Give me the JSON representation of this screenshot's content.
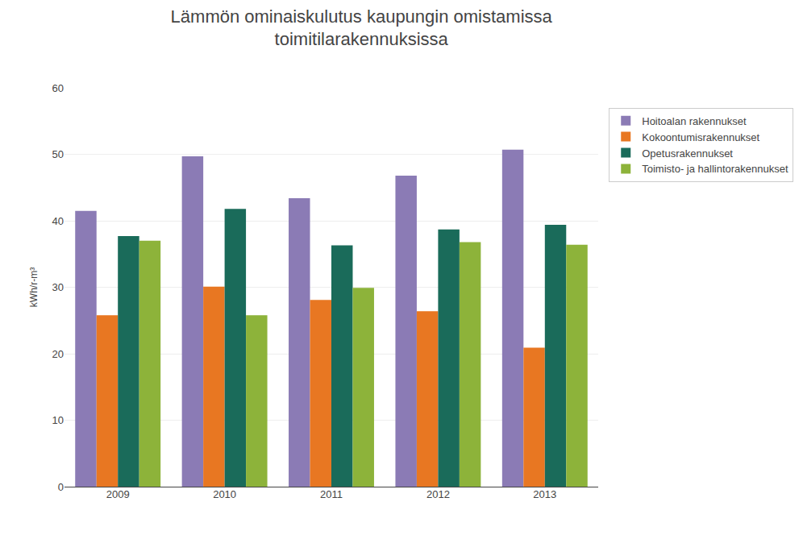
{
  "chart_data": {
    "type": "bar",
    "title": "Lämmön ominaiskulutus kaupungin omistamissa\ntoimitilarakennuksissa",
    "ylabel": "kWh/r-m³",
    "categories": [
      "2009",
      "2010",
      "2011",
      "2012",
      "2013"
    ],
    "series": [
      {
        "name": "Hoitoalan rakennukset",
        "color": "#8B7BB5",
        "values": [
          41.5,
          49.7,
          43.4,
          46.8,
          50.7
        ]
      },
      {
        "name": "Kokoontumisrakennukset",
        "color": "#E87722",
        "values": [
          25.8,
          30.1,
          28.1,
          26.4,
          20.9
        ]
      },
      {
        "name": "Opetusrakennukset",
        "color": "#1A6B5A",
        "values": [
          37.7,
          41.8,
          36.3,
          38.7,
          39.4
        ]
      },
      {
        "name": "Toimisto- ja hallintorakennukset",
        "color": "#8DB33A",
        "values": [
          37.0,
          25.8,
          29.9,
          36.8,
          36.4
        ]
      }
    ],
    "ylim": [
      0,
      60
    ],
    "yticks": [
      0,
      10,
      20,
      30,
      40,
      50,
      60
    ],
    "grid": true,
    "legend": "right"
  }
}
